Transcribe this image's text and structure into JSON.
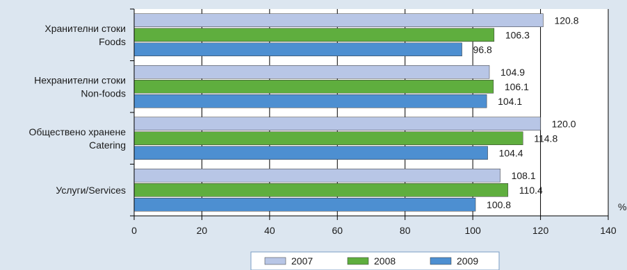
{
  "colors": {
    "background": "#dce6f0",
    "plot_area": "#ffffff",
    "axis": "#000000",
    "gridline": "#000000"
  },
  "chart_data": {
    "type": "bar",
    "orientation": "horizontal",
    "categories": [
      [
        "Хранителни стоки",
        "Foods"
      ],
      [
        "Нехранителни стоки",
        "Non-foods"
      ],
      [
        "Обществено хранене",
        "Catering"
      ],
      [
        "Услуги/Services"
      ]
    ],
    "series": [
      {
        "name": "2007",
        "color": "#b8c6e6",
        "values": [
          120.8,
          104.9,
          120.0,
          108.1
        ]
      },
      {
        "name": "2008",
        "color": "#5fae3e",
        "values": [
          106.3,
          106.1,
          114.8,
          110.4
        ]
      },
      {
        "name": "2009",
        "color": "#4d8fd1",
        "values": [
          96.8,
          104.1,
          104.4,
          100.8
        ]
      }
    ],
    "xlim": [
      0,
      140
    ],
    "xticks": [
      0,
      20,
      40,
      60,
      80,
      100,
      120,
      140
    ],
    "unit_label": "%",
    "grid": "vertical major gridlines",
    "data_labels": true,
    "legend_position": "bottom-center"
  }
}
